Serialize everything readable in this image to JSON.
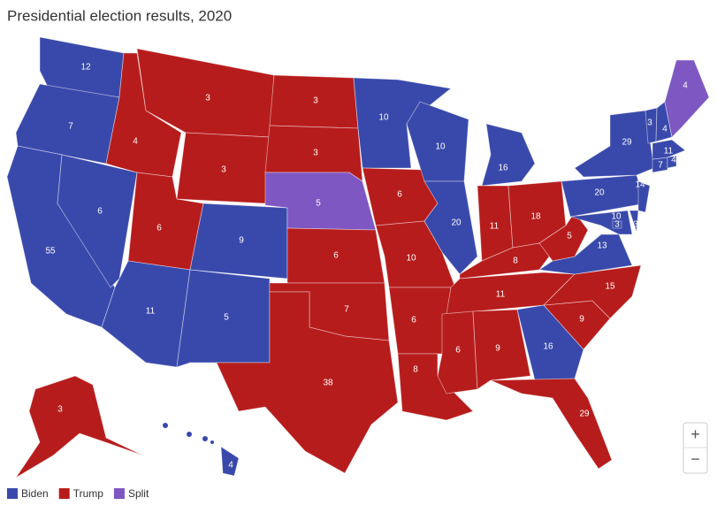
{
  "title": "Presidential election results, 2020",
  "legend": [
    {
      "name": "Biden",
      "color": "#3949ab"
    },
    {
      "name": "Trump",
      "color": "#b71c1c"
    },
    {
      "name": "Split",
      "color": "#7e57c2"
    }
  ],
  "states": [
    {
      "votes": 12,
      "winner": "Biden"
    },
    {
      "votes": 7,
      "winner": "Biden"
    },
    {
      "votes": 55,
      "winner": "Biden"
    },
    {
      "votes": 6,
      "winner": "Biden"
    },
    {
      "votes": 4,
      "winner": "Trump"
    },
    {
      "votes": 3,
      "winner": "Trump"
    },
    {
      "votes": 3,
      "winner": "Trump"
    },
    {
      "votes": 6,
      "winner": "Trump"
    },
    {
      "votes": 9,
      "winner": "Biden"
    },
    {
      "votes": 11,
      "winner": "Biden"
    },
    {
      "votes": 5,
      "winner": "Biden"
    },
    {
      "votes": 3,
      "winner": "Trump"
    },
    {
      "votes": 3,
      "winner": "Trump"
    },
    {
      "votes": 5,
      "winner": "Split"
    },
    {
      "votes": 6,
      "winner": "Trump"
    },
    {
      "votes": 7,
      "winner": "Trump"
    },
    {
      "votes": 38,
      "winner": "Trump"
    },
    {
      "votes": 10,
      "winner": "Biden"
    },
    {
      "votes": 6,
      "winner": "Trump"
    },
    {
      "votes": 10,
      "winner": "Trump"
    },
    {
      "votes": 6,
      "winner": "Trump"
    },
    {
      "votes": 8,
      "winner": "Trump"
    },
    {
      "votes": 10,
      "winner": "Biden"
    },
    {
      "votes": 20,
      "winner": "Biden"
    },
    {
      "votes": 16,
      "winner": "Biden"
    },
    {
      "votes": 11,
      "winner": "Trump"
    },
    {
      "votes": 18,
      "winner": "Trump"
    },
    {
      "votes": 8,
      "winner": "Trump"
    },
    {
      "votes": 11,
      "winner": "Trump"
    },
    {
      "votes": 6,
      "winner": "Trump"
    },
    {
      "votes": 9,
      "winner": "Trump"
    },
    {
      "votes": 16,
      "winner": "Biden"
    },
    {
      "votes": 29,
      "winner": "Trump"
    },
    {
      "votes": 9,
      "winner": "Trump"
    },
    {
      "votes": 15,
      "winner": "Trump"
    },
    {
      "votes": 13,
      "winner": "Biden"
    },
    {
      "votes": 5,
      "winner": "Trump"
    },
    {
      "votes": 20,
      "winner": "Biden"
    },
    {
      "votes": 29,
      "winner": "Biden"
    },
    {
      "votes": 10,
      "winner": "Biden"
    },
    {
      "votes": 3,
      "winner": "Biden"
    },
    {
      "votes": 3,
      "winner": "Biden"
    },
    {
      "votes": 14,
      "winner": "Biden"
    },
    {
      "votes": 7,
      "winner": "Biden"
    },
    {
      "votes": 3,
      "winner": "Biden"
    },
    {
      "votes": 4,
      "winner": "Biden"
    },
    {
      "votes": 11,
      "winner": "Biden"
    },
    {
      "votes": 4,
      "winner": "Biden"
    },
    {
      "votes": 4,
      "winner": "Split"
    },
    {
      "votes": 3,
      "winner": "Trump"
    },
    {
      "votes": 4,
      "winner": "Biden"
    }
  ],
  "zoom": [
    "+",
    "−"
  ]
}
